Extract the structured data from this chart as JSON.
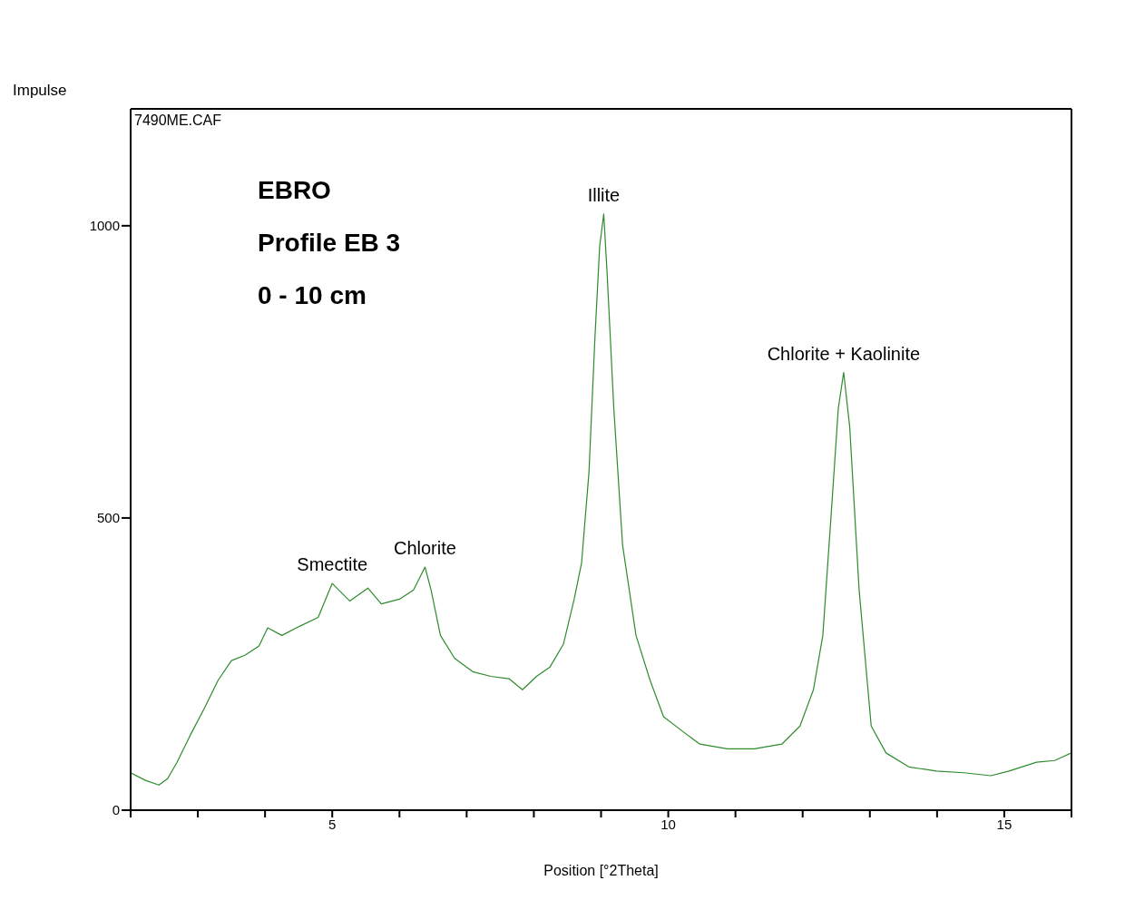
{
  "chart_data": {
    "type": "line",
    "xlabel": "Position [°2Theta]",
    "ylabel": "Impulse",
    "xlim": [
      2,
      16
    ],
    "ylim": [
      0,
      1200
    ],
    "xticks": [
      {
        "value": 2,
        "label": null
      },
      {
        "value": 3,
        "label": null
      },
      {
        "value": 4,
        "label": null
      },
      5,
      {
        "value": 6,
        "label": null
      },
      {
        "value": 7,
        "label": null
      },
      {
        "value": 8,
        "label": null
      },
      {
        "value": 9,
        "label": null
      },
      10,
      {
        "value": 11,
        "label": null
      },
      {
        "value": 12,
        "label": null
      },
      {
        "value": 13,
        "label": null
      },
      {
        "value": 14,
        "label": null
      },
      15,
      {
        "value": 16,
        "label": null
      }
    ],
    "yticks": [
      0,
      500,
      1000
    ],
    "annotations": [
      "7490ME.CAF",
      "EBRO",
      "Profile EB 3",
      "0 - 10 cm",
      {
        "text": "Smectite",
        "x": 5.0,
        "y": 388
      },
      {
        "text": "Chlorite",
        "x": 6.38,
        "y": 416
      },
      {
        "text": "Illite",
        "x": 9.04,
        "y": 1020
      },
      {
        "text": "Chlorite + Kaolinite",
        "x": 12.61,
        "y": 749
      }
    ],
    "series": [
      {
        "color": "#2e8b2e",
        "x": [
          2.0,
          2.22,
          2.42,
          2.55,
          2.69,
          2.89,
          3.1,
          3.3,
          3.5,
          3.7,
          3.91,
          4.04,
          4.25,
          4.52,
          4.79,
          5.0,
          5.26,
          5.53,
          5.73,
          6.0,
          6.21,
          6.38,
          6.47,
          6.61,
          6.82,
          7.09,
          7.36,
          7.63,
          7.83,
          8.04,
          8.24,
          8.44,
          8.6,
          8.71,
          8.82,
          8.91,
          8.98,
          9.04,
          9.09,
          9.19,
          9.32,
          9.52,
          9.73,
          9.93,
          10.2,
          10.47,
          10.88,
          11.28,
          11.69,
          11.96,
          12.16,
          12.3,
          12.43,
          12.53,
          12.61,
          12.7,
          12.84,
          13.02,
          13.24,
          13.58,
          13.99,
          14.4,
          14.8,
          15.07,
          15.48,
          15.75,
          16.0
        ],
        "values": [
          64,
          51,
          43,
          54,
          82,
          129,
          175,
          222,
          256,
          265,
          281,
          312,
          299,
          315,
          330,
          388,
          358,
          380,
          353,
          361,
          377,
          416,
          377,
          299,
          260,
          237,
          229,
          225,
          206,
          229,
          245,
          284,
          361,
          423,
          578,
          811,
          966,
          1020,
          919,
          687,
          454,
          299,
          222,
          160,
          136,
          113,
          105,
          105,
          113,
          144,
          206,
          299,
          516,
          687,
          749,
          656,
          377,
          144,
          98,
          74,
          67,
          64,
          59,
          67,
          82,
          85,
          98
        ]
      }
    ]
  }
}
